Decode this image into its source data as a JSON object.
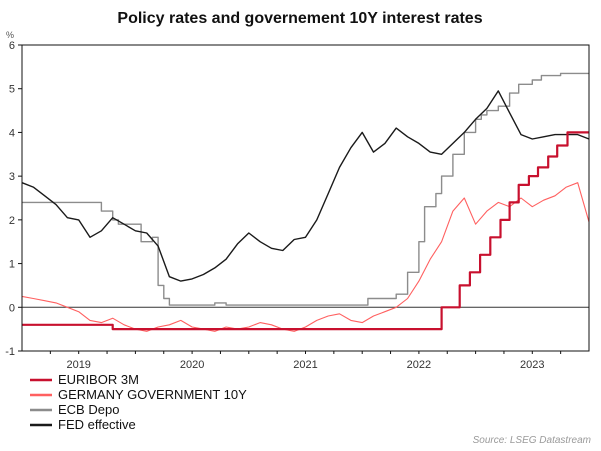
{
  "chart_data": {
    "type": "line",
    "title": "Policy rates and governement 10Y interest rates",
    "ylabel": "%",
    "xlabel": "",
    "ylim": [
      -1,
      6
    ],
    "xlim": [
      2018.5,
      2023.5
    ],
    "yticks": [
      -1,
      0,
      1,
      2,
      3,
      4,
      5,
      6
    ],
    "xticks": [
      2019,
      2020,
      2021,
      2022,
      2023
    ],
    "zero_line": true,
    "grid": false,
    "legend_position": "bottom-left",
    "source": "Source: LSEG Datastream",
    "series": [
      {
        "name": "EURIBOR 3M",
        "color": "#c8102e",
        "style": "step",
        "x": [
          2018.5,
          2019.15,
          2019.3,
          2022.05,
          2022.2,
          2022.36,
          2022.45,
          2022.54,
          2022.63,
          2022.72,
          2022.8,
          2022.88,
          2022.97,
          2023.05,
          2023.14,
          2023.22,
          2023.31,
          2023.5
        ],
        "values": [
          -0.4,
          -0.4,
          -0.5,
          -0.5,
          0.0,
          0.5,
          0.8,
          1.2,
          1.6,
          2.0,
          2.4,
          2.8,
          3.0,
          3.2,
          3.45,
          3.7,
          4.0,
          4.0
        ]
      },
      {
        "name": "GERMANY GOVERNMENT 10Y",
        "color": "#ff6060",
        "style": "line",
        "x": [
          2018.5,
          2018.6,
          2018.7,
          2018.8,
          2018.9,
          2019.0,
          2019.1,
          2019.2,
          2019.3,
          2019.4,
          2019.5,
          2019.6,
          2019.7,
          2019.8,
          2019.9,
          2020.0,
          2020.1,
          2020.2,
          2020.3,
          2020.4,
          2020.5,
          2020.6,
          2020.7,
          2020.8,
          2020.9,
          2021.0,
          2021.1,
          2021.2,
          2021.3,
          2021.4,
          2021.5,
          2021.6,
          2021.7,
          2021.8,
          2021.9,
          2022.0,
          2022.1,
          2022.2,
          2022.3,
          2022.4,
          2022.5,
          2022.6,
          2022.7,
          2022.8,
          2022.9,
          2023.0,
          2023.1,
          2023.2,
          2023.3,
          2023.4,
          2023.5
        ],
        "values": [
          0.25,
          0.2,
          0.15,
          0.1,
          0.0,
          -0.1,
          -0.3,
          -0.35,
          -0.25,
          -0.4,
          -0.5,
          -0.55,
          -0.45,
          -0.4,
          -0.3,
          -0.45,
          -0.5,
          -0.55,
          -0.45,
          -0.5,
          -0.45,
          -0.35,
          -0.4,
          -0.5,
          -0.55,
          -0.45,
          -0.3,
          -0.2,
          -0.15,
          -0.3,
          -0.35,
          -0.2,
          -0.1,
          0.0,
          0.2,
          0.6,
          1.1,
          1.5,
          2.2,
          2.5,
          1.9,
          2.2,
          2.4,
          2.3,
          2.5,
          2.3,
          2.45,
          2.55,
          2.75,
          2.85,
          1.95
        ]
      },
      {
        "name": "ECB Depo",
        "color": "#8c8c8c",
        "style": "step",
        "x": [
          2018.5,
          2019.1,
          2019.2,
          2019.3,
          2019.35,
          2019.55,
          2019.6,
          2019.65,
          2019.7,
          2019.75,
          2019.8,
          2019.9,
          2020.2,
          2020.3,
          2021.5,
          2021.55,
          2021.8,
          2021.9,
          2022.0,
          2022.05,
          2022.15,
          2022.2,
          2022.3,
          2022.4,
          2022.5,
          2022.55,
          2022.6,
          2022.7,
          2022.8,
          2022.88,
          2023.0,
          2023.08,
          2023.16,
          2023.25,
          2023.5
        ],
        "values": [
          2.4,
          2.4,
          2.2,
          2.0,
          1.9,
          1.5,
          1.5,
          1.6,
          0.5,
          0.2,
          0.05,
          0.05,
          0.1,
          0.05,
          0.05,
          0.2,
          0.3,
          0.8,
          1.5,
          2.3,
          2.6,
          3.0,
          3.5,
          4.0,
          4.3,
          4.4,
          4.5,
          4.6,
          4.9,
          5.1,
          5.2,
          5.3,
          5.3,
          5.35,
          5.35
        ]
      },
      {
        "name": "FED effective",
        "color": "#1a1a1a",
        "style": "line",
        "x": [
          2018.5,
          2018.6,
          2018.7,
          2018.8,
          2018.9,
          2019.0,
          2019.1,
          2019.2,
          2019.3,
          2019.4,
          2019.5,
          2019.6,
          2019.7,
          2019.8,
          2019.9,
          2020.0,
          2020.1,
          2020.2,
          2020.3,
          2020.4,
          2020.5,
          2020.6,
          2020.7,
          2020.8,
          2020.9,
          2021.0,
          2021.1,
          2021.2,
          2021.3,
          2021.4,
          2021.5,
          2021.6,
          2021.7,
          2021.8,
          2021.9,
          2022.0,
          2022.1,
          2022.2,
          2022.3,
          2022.4,
          2022.5,
          2022.6,
          2022.7,
          2022.8,
          2022.9,
          2023.0,
          2023.1,
          2023.2,
          2023.3,
          2023.4,
          2023.5
        ],
        "values": [
          2.85,
          2.75,
          2.55,
          2.35,
          2.05,
          2.0,
          1.6,
          1.75,
          2.05,
          1.9,
          1.75,
          1.7,
          1.4,
          0.7,
          0.6,
          0.65,
          0.75,
          0.9,
          1.1,
          1.45,
          1.7,
          1.5,
          1.35,
          1.3,
          1.55,
          1.6,
          2.0,
          2.6,
          3.2,
          3.65,
          4.0,
          3.55,
          3.75,
          4.1,
          3.9,
          3.75,
          3.55,
          3.5,
          3.75,
          4.0,
          4.3,
          4.55,
          4.95,
          4.45,
          3.95,
          3.85,
          3.9,
          3.95,
          3.95,
          3.95,
          3.85
        ]
      }
    ]
  }
}
